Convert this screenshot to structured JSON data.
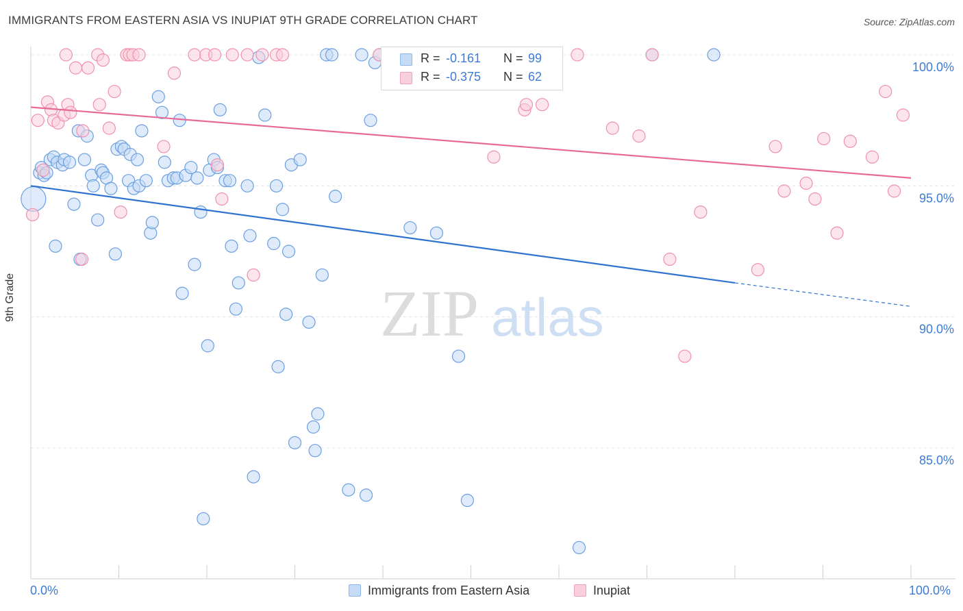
{
  "title": "IMMIGRANTS FROM EASTERN ASIA VS INUPIAT 9TH GRADE CORRELATION CHART",
  "source": "Source: ZipAtlas.com",
  "watermark": {
    "zip": "ZIP",
    "atlas": "atlas"
  },
  "legend": {
    "r_label": "R =",
    "n_label": "N =",
    "series": [
      {
        "r": "-0.161",
        "n": "99",
        "color": "#8fb8ea",
        "fill": "#c5dbf5"
      },
      {
        "r": "-0.375",
        "n": "62",
        "color": "#f0a0b8",
        "fill": "#f9cfdc"
      }
    ]
  },
  "bottom_legend": [
    "Immigrants from Eastern Asia",
    "Inupiat"
  ],
  "chart_data": {
    "type": "scatter",
    "title": "IMMIGRANTS FROM EASTERN ASIA VS INUPIAT 9TH GRADE CORRELATION CHART",
    "xlabel": "",
    "ylabel": "9th Grade",
    "xlim": [
      0,
      100
    ],
    "ylim": [
      80.5,
      101
    ],
    "x_tick_labels": [
      "0.0%",
      "100.0%"
    ],
    "y_ticks": [
      {
        "value": 100,
        "label": "100.0%"
      },
      {
        "value": 95,
        "label": "95.0%"
      },
      {
        "value": 90,
        "label": "90.0%"
      },
      {
        "value": 85,
        "label": "85.0%"
      }
    ],
    "grid": "horizontal dashed",
    "legend_position": "top-center",
    "series": [
      {
        "name": "Immigrants from Eastern Asia",
        "color": "#6a9fe0",
        "fill": "#c5dbf5",
        "trend": {
          "x0": 0,
          "y0": 95.0,
          "x1": 80,
          "y1": 91.3,
          "dashed_to_x": 100,
          "dashed_to_y": 90.4,
          "color": "#2f72d0"
        },
        "points": [
          [
            0.3,
            94.5
          ],
          [
            1,
            95.5
          ],
          [
            1.2,
            95.7
          ],
          [
            1.5,
            95.4
          ],
          [
            1.8,
            95.5
          ],
          [
            2.2,
            96.0
          ],
          [
            2.6,
            96.1
          ],
          [
            3,
            95.9
          ],
          [
            3.6,
            95.8
          ],
          [
            3.8,
            96.0
          ],
          [
            4.4,
            95.9
          ],
          [
            2.8,
            92.7
          ],
          [
            4.9,
            94.3
          ],
          [
            5.4,
            97.1
          ],
          [
            5.6,
            92.2
          ],
          [
            6.1,
            96.0
          ],
          [
            6.4,
            96.9
          ],
          [
            6.9,
            95.4
          ],
          [
            7.1,
            95.0
          ],
          [
            7.6,
            93.7
          ],
          [
            8,
            95.6
          ],
          [
            8.2,
            95.5
          ],
          [
            8.6,
            95.3
          ],
          [
            9.1,
            94.9
          ],
          [
            9.6,
            92.4
          ],
          [
            9.8,
            96.4
          ],
          [
            10.3,
            96.5
          ],
          [
            10.6,
            96.4
          ],
          [
            11.1,
            95.2
          ],
          [
            11.3,
            96.2
          ],
          [
            11.7,
            94.9
          ],
          [
            12.1,
            96.0
          ],
          [
            12.3,
            95.0
          ],
          [
            12.6,
            97.1
          ],
          [
            13.1,
            95.2
          ],
          [
            13.6,
            93.2
          ],
          [
            13.8,
            93.6
          ],
          [
            14.5,
            98.4
          ],
          [
            14.9,
            97.8
          ],
          [
            15.2,
            95.9
          ],
          [
            15.6,
            95.2
          ],
          [
            16.2,
            95.3
          ],
          [
            16.6,
            95.3
          ],
          [
            16.9,
            97.5
          ],
          [
            17.2,
            90.9
          ],
          [
            17.6,
            95.4
          ],
          [
            18.2,
            95.7
          ],
          [
            18.6,
            92.0
          ],
          [
            18.9,
            95.3
          ],
          [
            19.3,
            94.0
          ],
          [
            19.6,
            82.3
          ],
          [
            20.1,
            88.9
          ],
          [
            20.3,
            95.6
          ],
          [
            20.8,
            96.0
          ],
          [
            21.2,
            95.7
          ],
          [
            21.5,
            97.9
          ],
          [
            22.1,
            95.2
          ],
          [
            22.6,
            95.2
          ],
          [
            22.8,
            92.7
          ],
          [
            23.3,
            90.3
          ],
          [
            23.6,
            91.3
          ],
          [
            24.6,
            95.0
          ],
          [
            24.9,
            93.1
          ],
          [
            25.3,
            83.9
          ],
          [
            25.9,
            99.9
          ],
          [
            26.6,
            97.7
          ],
          [
            27.6,
            92.8
          ],
          [
            27.9,
            95.0
          ],
          [
            28.1,
            88.1
          ],
          [
            28.6,
            94.1
          ],
          [
            29,
            90.1
          ],
          [
            29.3,
            92.5
          ],
          [
            29.6,
            95.8
          ],
          [
            30,
            85.2
          ],
          [
            30.6,
            96.0
          ],
          [
            31.6,
            89.8
          ],
          [
            32.1,
            85.8
          ],
          [
            32.3,
            84.9
          ],
          [
            32.6,
            86.3
          ],
          [
            33.1,
            91.6
          ],
          [
            33.6,
            100.0
          ],
          [
            34.2,
            100.0
          ],
          [
            34.6,
            94.6
          ],
          [
            36.1,
            83.4
          ],
          [
            37.6,
            100.0
          ],
          [
            38.1,
            83.2
          ],
          [
            38.6,
            97.5
          ],
          [
            39.1,
            99.7
          ],
          [
            39.6,
            100.0
          ],
          [
            41.6,
            100.0
          ],
          [
            42.6,
            99.8
          ],
          [
            43.1,
            93.4
          ],
          [
            46.1,
            93.2
          ],
          [
            48.6,
            88.5
          ],
          [
            49.6,
            83.0
          ],
          [
            52.6,
            100.0
          ],
          [
            62.3,
            81.2
          ],
          [
            70.6,
            100.0
          ],
          [
            77.6,
            100.0
          ]
        ],
        "large_point": [
          0.3,
          94.5
        ]
      },
      {
        "name": "Inupiat",
        "color": "#ef91ad",
        "fill": "#f9cfdc",
        "trend": {
          "x0": 0,
          "y0": 98.0,
          "x1": 100,
          "y1": 95.3,
          "color": "#e76a96"
        },
        "points": [
          [
            0.2,
            93.9
          ],
          [
            0.8,
            97.5
          ],
          [
            1.4,
            95.6
          ],
          [
            1.9,
            98.2
          ],
          [
            2.3,
            97.9
          ],
          [
            2.6,
            97.5
          ],
          [
            3.1,
            97.4
          ],
          [
            3.8,
            97.7
          ],
          [
            4.2,
            98.1
          ],
          [
            4.5,
            97.8
          ],
          [
            5.1,
            99.5
          ],
          [
            5.9,
            97.1
          ],
          [
            6.5,
            99.5
          ],
          [
            7.6,
            100.0
          ],
          [
            7.8,
            98.1
          ],
          [
            8.2,
            99.8
          ],
          [
            8.9,
            97.2
          ],
          [
            9.5,
            98.6
          ],
          [
            10.2,
            94.0
          ],
          [
            10.9,
            100.0
          ],
          [
            11.2,
            100.0
          ],
          [
            11.6,
            100.0
          ],
          [
            12.3,
            100.0
          ],
          [
            15.1,
            96.5
          ],
          [
            16.3,
            99.3
          ],
          [
            18.6,
            100.0
          ],
          [
            19.9,
            100.0
          ],
          [
            20.9,
            100.0
          ],
          [
            21.2,
            95.8
          ],
          [
            21.7,
            94.5
          ],
          [
            22.9,
            100.0
          ],
          [
            24.6,
            100.0
          ],
          [
            25.3,
            91.6
          ],
          [
            26.3,
            100.0
          ],
          [
            27.9,
            100.0
          ],
          [
            28.6,
            100.0
          ],
          [
            4.0,
            100.0
          ],
          [
            5.8,
            92.2
          ],
          [
            39.6,
            100.0
          ],
          [
            52.6,
            96.1
          ],
          [
            56.1,
            97.9
          ],
          [
            56.3,
            98.1
          ],
          [
            58.1,
            98.1
          ],
          [
            62.1,
            100.0
          ],
          [
            66.1,
            97.2
          ],
          [
            69.1,
            96.9
          ],
          [
            70.6,
            100.0
          ],
          [
            72.6,
            92.2
          ],
          [
            74.3,
            88.5
          ],
          [
            76.1,
            94.0
          ],
          [
            82.6,
            91.8
          ],
          [
            84.6,
            96.5
          ],
          [
            85.6,
            94.8
          ],
          [
            88.1,
            95.1
          ],
          [
            89.1,
            94.5
          ],
          [
            90.1,
            96.8
          ],
          [
            91.6,
            93.2
          ],
          [
            93.1,
            96.7
          ],
          [
            95.6,
            96.1
          ],
          [
            97.1,
            98.6
          ],
          [
            98.1,
            94.8
          ],
          [
            99.1,
            97.7
          ]
        ]
      }
    ]
  }
}
